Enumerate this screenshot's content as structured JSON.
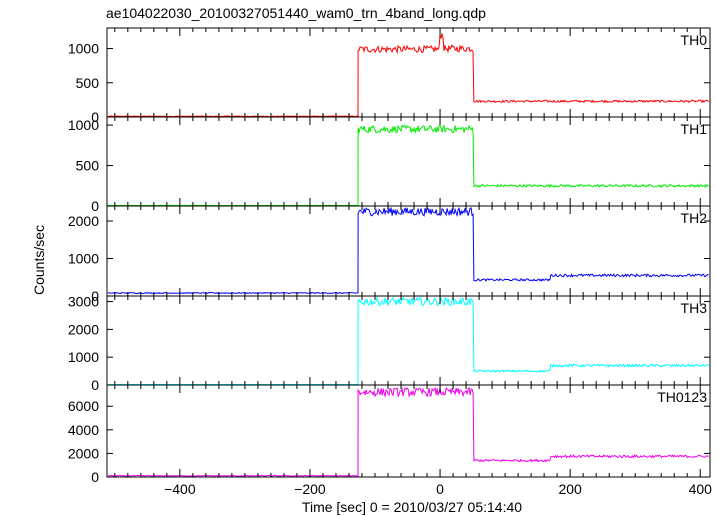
{
  "chart_data": {
    "type": "line",
    "title": "ae104022030_20100327051440_wam0_trn_4band_long.qdp",
    "xlabel": "Time [sec] 0 = 2010/03/27 05:14:40",
    "ylabel": "Counts/sec",
    "xlim": [
      -512,
      415
    ],
    "x_ticks": [
      -400,
      -200,
      0,
      200,
      400
    ],
    "x_tick_labels": [
      "−400",
      "−200",
      "0",
      "200",
      "400"
    ],
    "grid": false,
    "panels": [
      {
        "name": "TH0",
        "color": "#ff0000",
        "ylim": [
          0,
          1300
        ],
        "y_ticks": [
          0,
          500,
          1000
        ],
        "segments": [
          {
            "x_start": -512,
            "x_end": -126,
            "level": 10
          },
          {
            "x_start": -126,
            "x_end": 0,
            "level": 990
          },
          {
            "x_start": 0,
            "x_end": 6,
            "level": 1200
          },
          {
            "x_start": 6,
            "x_end": 52,
            "level": 1000
          },
          {
            "x_start": 52,
            "x_end": 415,
            "level": 230
          }
        ]
      },
      {
        "name": "TH1",
        "color": "#00ee00",
        "ylim": [
          0,
          1100
        ],
        "y_ticks": [
          0,
          500,
          1000
        ],
        "segments": [
          {
            "x_start": -512,
            "x_end": -126,
            "level": 5
          },
          {
            "x_start": -126,
            "x_end": 52,
            "level": 950
          },
          {
            "x_start": 52,
            "x_end": 415,
            "level": 250
          }
        ]
      },
      {
        "name": "TH2",
        "color": "#0000ff",
        "ylim": [
          0,
          2400
        ],
        "y_ticks": [
          0,
          1000,
          2000
        ],
        "segments": [
          {
            "x_start": -512,
            "x_end": -126,
            "level": 80
          },
          {
            "x_start": -126,
            "x_end": 52,
            "level": 2250
          },
          {
            "x_start": 52,
            "x_end": 170,
            "level": 430
          },
          {
            "x_start": 170,
            "x_end": 415,
            "level": 550
          }
        ]
      },
      {
        "name": "TH3",
        "color": "#00ffff",
        "ylim": [
          0,
          3200
        ],
        "y_ticks": [
          0,
          1000,
          2000,
          3000
        ],
        "segments": [
          {
            "x_start": -512,
            "x_end": -126,
            "level": 5
          },
          {
            "x_start": -126,
            "x_end": 52,
            "level": 3000
          },
          {
            "x_start": 52,
            "x_end": 170,
            "level": 500
          },
          {
            "x_start": 170,
            "x_end": 415,
            "level": 700
          }
        ]
      },
      {
        "name": "TH0123",
        "color": "#ee00ee",
        "ylim": [
          0,
          7800
        ],
        "y_ticks": [
          0,
          2000,
          4000,
          6000
        ],
        "segments": [
          {
            "x_start": -512,
            "x_end": -126,
            "level": 100
          },
          {
            "x_start": -126,
            "x_end": 52,
            "level": 7200
          },
          {
            "x_start": 52,
            "x_end": 170,
            "level": 1400
          },
          {
            "x_start": 170,
            "x_end": 415,
            "level": 1750
          }
        ]
      }
    ]
  }
}
